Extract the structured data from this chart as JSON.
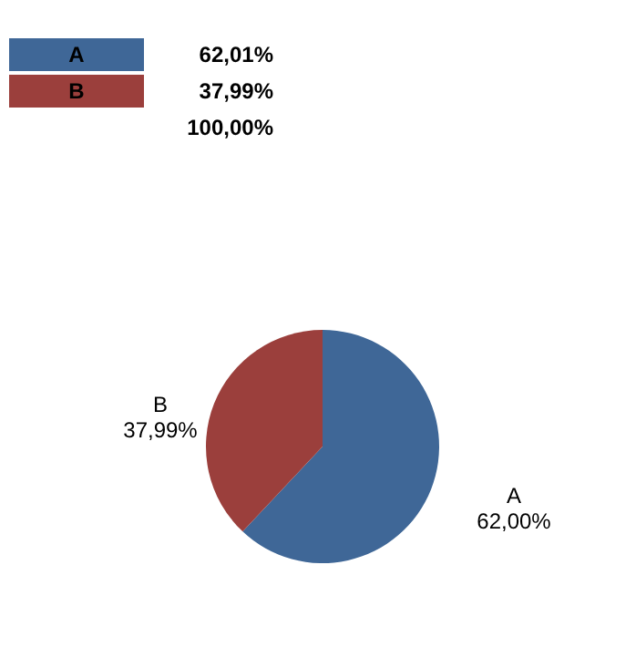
{
  "chart_data": {
    "type": "pie",
    "categories": [
      "A",
      "B"
    ],
    "values": [
      62.0,
      37.99
    ],
    "colors": [
      "#3f6797",
      "#9b3f3c"
    ],
    "value_labels": [
      "62,00%",
      "37,99%"
    ],
    "annotations": [
      "62,01%",
      "37,99%",
      "100,00%"
    ],
    "legend": false
  }
}
